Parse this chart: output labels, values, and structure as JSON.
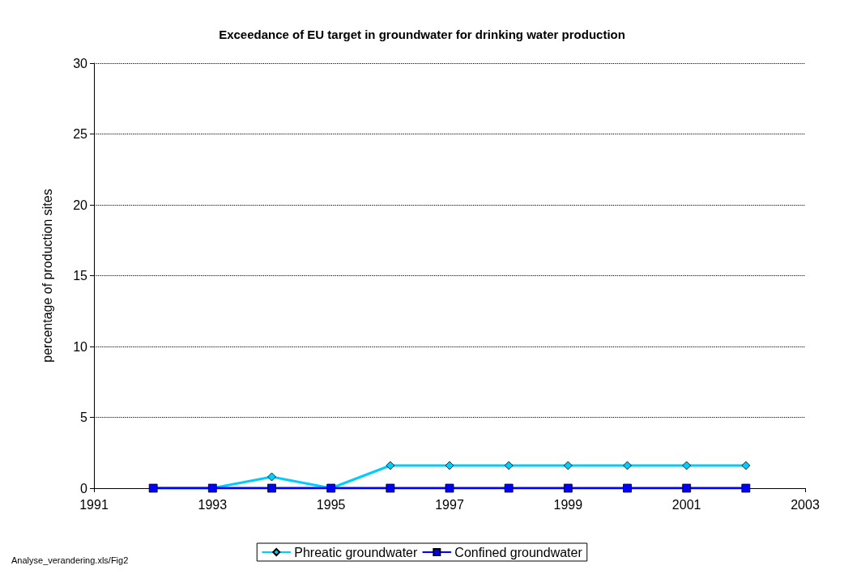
{
  "chart_data": {
    "type": "line",
    "title": "Exceedance of EU target in groundwater for drinking water production",
    "ylabel": "percentage of production sites",
    "annotations": [
      "Analyse_verandering.xls/Fig2"
    ],
    "x": [
      1992,
      1993,
      1994,
      1995,
      1996,
      1997,
      1998,
      1999,
      2000,
      2001,
      2002
    ],
    "series": [
      {
        "name": "Phreatic groundwater",
        "color": "#00ccff",
        "marker": "diamond",
        "values": [
          0,
          0,
          0.8,
          0,
          1.6,
          1.6,
          1.6,
          1.6,
          1.6,
          1.6,
          1.6
        ]
      },
      {
        "name": "Confined groundwater",
        "color": "#0000ff",
        "marker": "square",
        "values": [
          0,
          0,
          0,
          0,
          0,
          0,
          0,
          0,
          0,
          0,
          0
        ]
      }
    ],
    "xlim": [
      1991,
      2003
    ],
    "xticks": [
      1991,
      1993,
      1995,
      1997,
      1999,
      2001,
      2003
    ],
    "ylim": [
      0,
      30
    ],
    "yticks": [
      0,
      5,
      10,
      15,
      20,
      25,
      30
    ],
    "grid": "y",
    "legend": "bottom",
    "line_style": "solid"
  }
}
